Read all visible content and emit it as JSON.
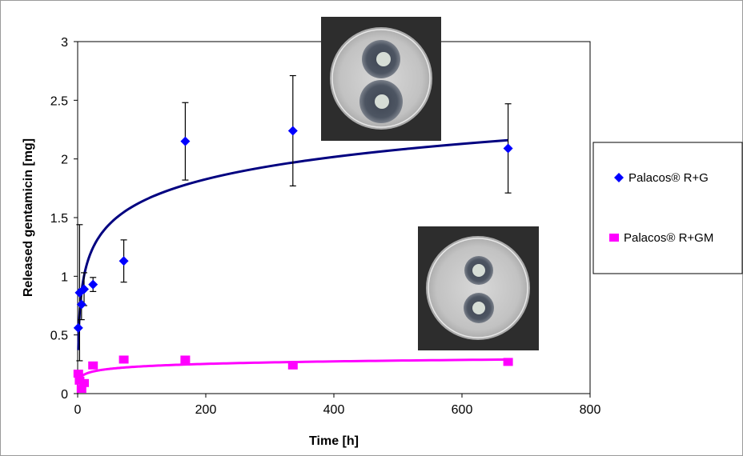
{
  "chart_data": {
    "type": "scatter",
    "title": "",
    "xlabel": "Time [h]",
    "ylabel": "Released gentamicin [mg]",
    "xlim": [
      0,
      800
    ],
    "ylim": [
      0,
      3
    ],
    "xticks": [
      0,
      200,
      400,
      600,
      800
    ],
    "yticks": [
      0,
      0.5,
      1,
      1.5,
      2,
      2.5,
      3
    ],
    "xtick_labels": [
      "0",
      "200",
      "400",
      "600",
      "800"
    ],
    "ytick_labels": [
      "0",
      "0.5",
      "1",
      "1.5",
      "2",
      "2.5",
      "3"
    ],
    "grid": false,
    "legend_position": "right",
    "series": [
      {
        "name": "Palacos® R+G",
        "color": "#0000ff",
        "marker": "diamond",
        "trend_color": "#000080",
        "points": [
          {
            "x": 1,
            "y": 0.56,
            "err": 0.0
          },
          {
            "x": 3,
            "y": 0.86,
            "err": 0.58
          },
          {
            "x": 6,
            "y": 0.76,
            "err": 0.13
          },
          {
            "x": 10,
            "y": 0.89,
            "err": 0.14
          },
          {
            "x": 24,
            "y": 0.93,
            "err": 0.06
          },
          {
            "x": 72,
            "y": 1.13,
            "err": 0.18
          },
          {
            "x": 168,
            "y": 2.15,
            "err": 0.33
          },
          {
            "x": 336,
            "y": 2.24,
            "err": 0.47
          },
          {
            "x": 672,
            "y": 2.09,
            "err": 0.38
          }
        ]
      },
      {
        "name": "Palacos® R+GM",
        "color": "#ff00ff",
        "marker": "square",
        "trend_color": "#ff00ff",
        "points": [
          {
            "x": 1,
            "y": 0.17,
            "err": 0.0
          },
          {
            "x": 3,
            "y": 0.11,
            "err": 0.0
          },
          {
            "x": 6,
            "y": 0.04,
            "err": 0.0
          },
          {
            "x": 10,
            "y": 0.09,
            "err": 0.0
          },
          {
            "x": 24,
            "y": 0.24,
            "err": 0.0
          },
          {
            "x": 72,
            "y": 0.29,
            "err": 0.02
          },
          {
            "x": 168,
            "y": 0.29,
            "err": 0.02
          },
          {
            "x": 336,
            "y": 0.24,
            "err": 0.0
          },
          {
            "x": 672,
            "y": 0.27,
            "err": 0.0
          }
        ]
      }
    ]
  },
  "images": {
    "inset_top": "agar-plate-photo",
    "inset_bottom": "agar-plate-photo"
  }
}
